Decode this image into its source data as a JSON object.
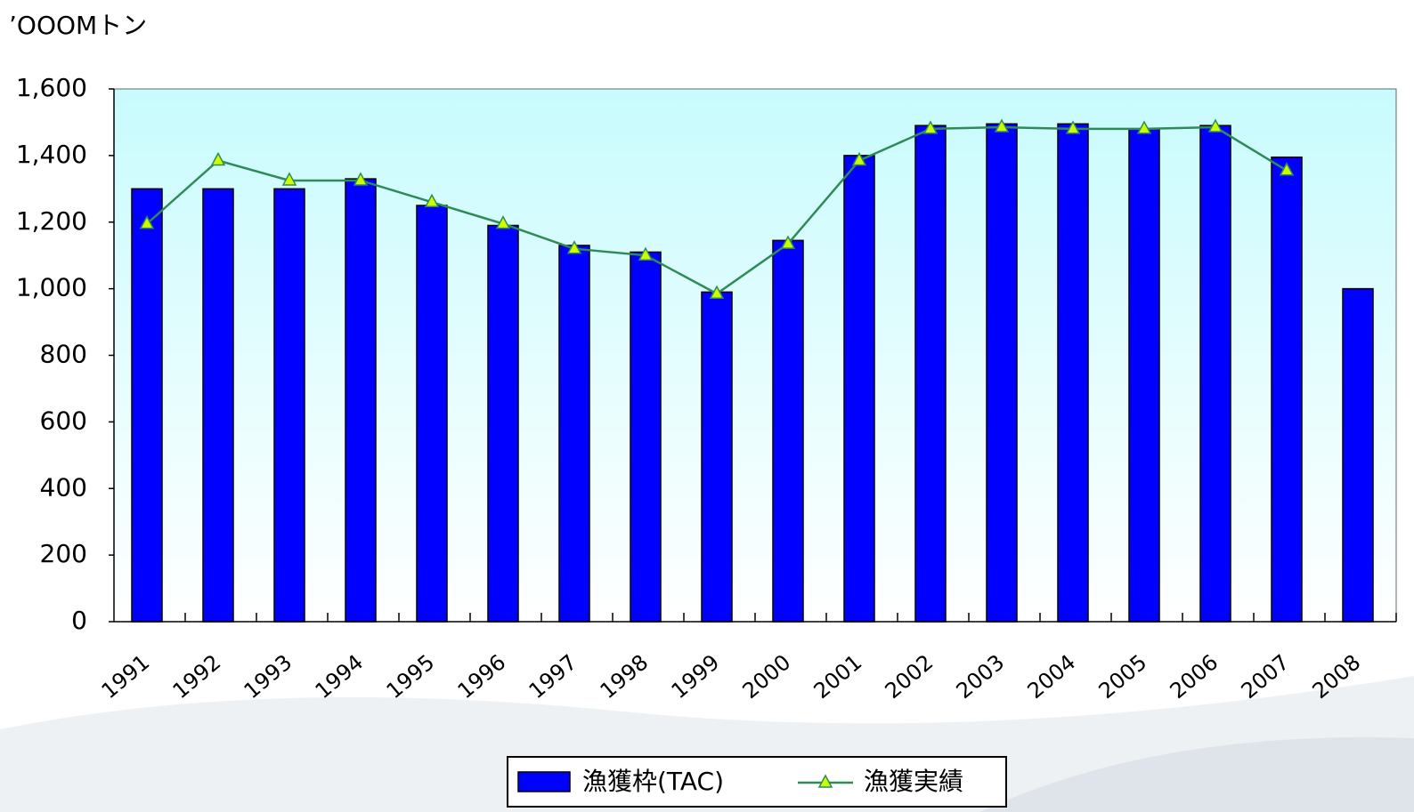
{
  "chart_data": {
    "type": "bar_line",
    "y_axis_label": "’OOOMトン",
    "categories": [
      "1991",
      "1992",
      "1993",
      "1994",
      "1995",
      "1996",
      "1997",
      "1998",
      "1999",
      "2000",
      "2001",
      "2002",
      "2003",
      "2004",
      "2005",
      "2006",
      "2007",
      "2008"
    ],
    "series": [
      {
        "name": "漁獲枠(TAC)",
        "type": "bar",
        "color": "#0000ff",
        "values": [
          1300,
          1300,
          1300,
          1330,
          1250,
          1190,
          1130,
          1110,
          990,
          1145,
          1400,
          1490,
          1495,
          1495,
          1480,
          1490,
          1395,
          1000
        ]
      },
      {
        "name": "漁獲実績",
        "type": "line",
        "color": "#2e8b57",
        "marker_color": "#ccff00",
        "values": [
          1195,
          1385,
          1325,
          1325,
          1260,
          1195,
          1120,
          1100,
          985,
          1135,
          1385,
          1480,
          1485,
          1480,
          1480,
          1485,
          1355,
          null
        ]
      }
    ],
    "ylim": [
      0,
      1600
    ],
    "yticks": [
      0,
      200,
      400,
      600,
      800,
      {
        "value": 1000,
        "label": "1,000"
      },
      {
        "value": 1200,
        "label": "1,200"
      },
      {
        "value": 1400,
        "label": "1,400"
      },
      {
        "value": 1600,
        "label": "1,600"
      }
    ],
    "legend": "bottom"
  }
}
